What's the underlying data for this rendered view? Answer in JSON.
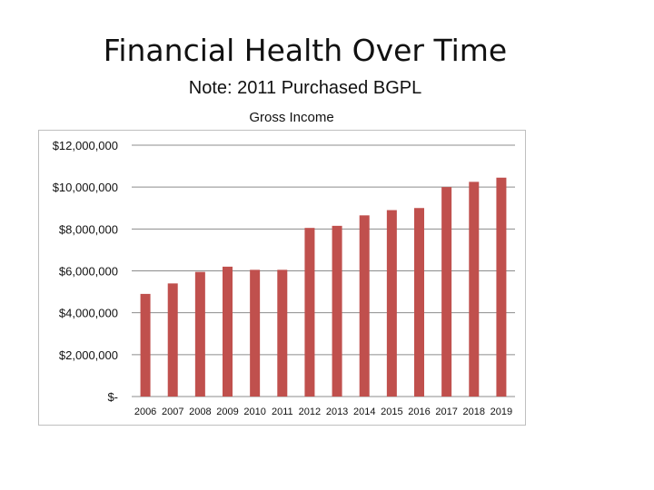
{
  "slide": {
    "title": "Financial Health Over Time",
    "note": "Note:  2011 Purchased BGPL"
  },
  "colors": {
    "bar": "#c0504d",
    "gridline": "#8c8c8c",
    "text": "#111111"
  },
  "chart_data": {
    "type": "bar",
    "title": "Gross Income",
    "xlabel": "",
    "ylabel": "",
    "categories": [
      "2006",
      "2007",
      "2008",
      "2009",
      "2010",
      "2011",
      "2012",
      "2013",
      "2014",
      "2015",
      "2016",
      "2017",
      "2018",
      "2019"
    ],
    "series": [
      {
        "values": [
          4900000,
          5400000,
          5950000,
          6200000,
          6050000,
          6050000,
          8050000,
          8150000,
          8650000,
          8900000,
          9000000,
          10000000,
          10250000,
          10450000
        ]
      }
    ],
    "ylim": [
      0,
      12000000
    ],
    "yticks": [
      0,
      2000000,
      4000000,
      6000000,
      8000000,
      10000000,
      12000000
    ],
    "ytick_labels": [
      "$-",
      "$2,000,000",
      "$4,000,000",
      "$6,000,000",
      "$8,000,000",
      "$10,000,000",
      "$12,000,000"
    ],
    "grid": true,
    "legend": "none"
  }
}
